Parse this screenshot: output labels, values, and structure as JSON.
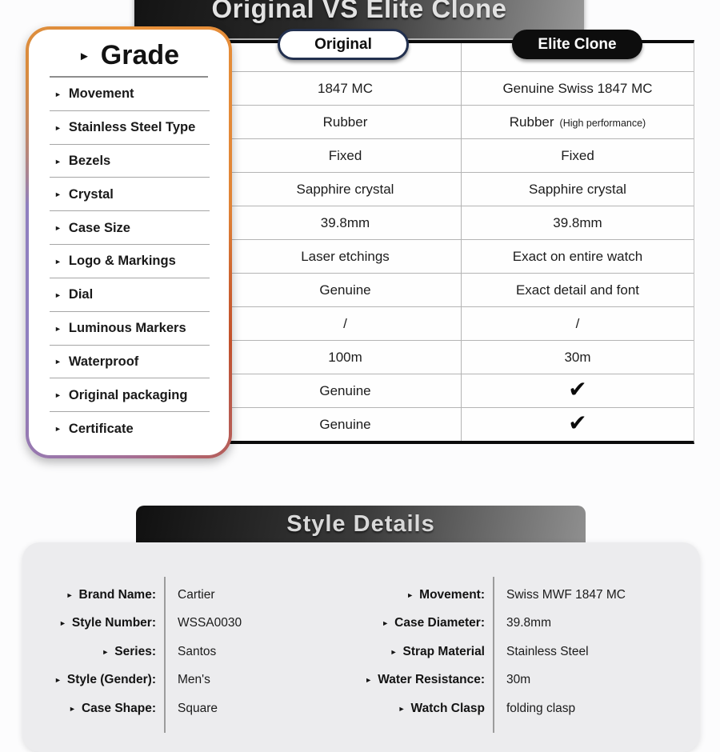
{
  "colors": {
    "accent_orange": "#E8923A",
    "accent_purple": "#8F7FC0",
    "accent_red": "#C2512C",
    "banner_dark": "#131313",
    "banner_light": "#979797",
    "badge_original_border": "#22304F",
    "badge_clone_bg": "#0D0D0D",
    "table_line": "#B4B4B4",
    "panel_bg": "#ECECEE"
  },
  "icons": {
    "bullet": "►",
    "check": "✔"
  },
  "comparison": {
    "banner_title": "Original VS Elite Clone",
    "original_badge": "Original",
    "clone_badge": "Elite Clone",
    "sidebar": {
      "title": "Grade",
      "items": [
        "Movement",
        "Stainless Steel Type",
        "Bezels",
        "Crystal",
        "Case Size",
        "Logo & Markings",
        "Dial",
        "Luminous Markers",
        "Waterproof",
        "Original packaging",
        "Certificate"
      ]
    },
    "rows": [
      {
        "original": "1847 MC",
        "clone": "Genuine Swiss 1847 MC"
      },
      {
        "original": "Rubber",
        "clone": "Rubber",
        "clone_note": "(High performance)"
      },
      {
        "original": "Fixed",
        "clone": "Fixed"
      },
      {
        "original": "Sapphire crystal",
        "clone": "Sapphire crystal"
      },
      {
        "original": "39.8mm",
        "clone": "39.8mm"
      },
      {
        "original": "Laser etchings",
        "clone": "Exact on entire watch"
      },
      {
        "original": "Genuine",
        "clone": "Exact detail and font"
      },
      {
        "original": "/",
        "clone": "/"
      },
      {
        "original": "100m",
        "clone": "30m"
      },
      {
        "original": "Genuine",
        "clone_check": true
      },
      {
        "original": "Genuine",
        "clone_check": true
      }
    ]
  },
  "style_details": {
    "banner_title": "Style Details",
    "left_rows": [
      {
        "label": "Brand Name:",
        "value": "Cartier"
      },
      {
        "label": "Style Number:",
        "value": "WSSA0030"
      },
      {
        "label": "Series:",
        "value": "Santos"
      },
      {
        "label": "Style (Gender):",
        "value": "Men's"
      },
      {
        "label": "Case Shape:",
        "value": "Square"
      }
    ],
    "right_rows": [
      {
        "label": "Movement:",
        "value": "Swiss MWF 1847 MC"
      },
      {
        "label": "Case Diameter:",
        "value": "39.8mm"
      },
      {
        "label": "Strap Material",
        "value": "Stainless Steel"
      },
      {
        "label": "Water Resistance:",
        "value": "30m"
      },
      {
        "label": "Watch Clasp",
        "value": "folding clasp"
      }
    ]
  }
}
